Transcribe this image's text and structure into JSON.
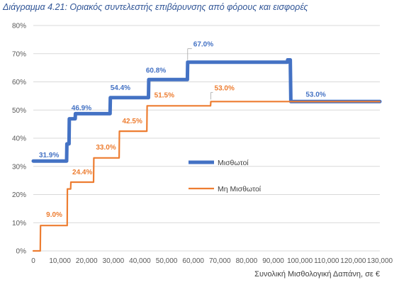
{
  "title": "Διάγραμμα 4.21: Οριακός συντελεστής επιβάρυνσης από φόρους και εισφορές",
  "chart_data": {
    "type": "line",
    "xlabel": "Συνολική Μισθολογική Δαπάνη, σε €",
    "ylabel": "",
    "xlim": [
      0,
      130000
    ],
    "ylim": [
      0,
      80
    ],
    "x_ticks": [
      "0",
      "10,000",
      "20,000",
      "30,000",
      "40,000",
      "50,000",
      "60,000",
      "70,000",
      "80,000",
      "90,000",
      "100,000",
      "110,000",
      "120,000",
      "130,000"
    ],
    "y_ticks": [
      "0%",
      "10%",
      "20%",
      "30%",
      "40%",
      "50%",
      "60%",
      "70%",
      "80%"
    ],
    "grid": "horizontal",
    "legend_position": "center-right",
    "series": [
      {
        "name": "Μισθωτοί",
        "color": "#4472c4",
        "points": [
          [
            0,
            31.9
          ],
          [
            12500,
            31.9
          ],
          [
            12600,
            38
          ],
          [
            13400,
            38
          ],
          [
            13500,
            46.9
          ],
          [
            15700,
            46.9
          ],
          [
            15800,
            48.7
          ],
          [
            28800,
            48.7
          ],
          [
            28900,
            54.4
          ],
          [
            43200,
            54.4
          ],
          [
            43300,
            60.8
          ],
          [
            57800,
            60.8
          ],
          [
            57900,
            67.0
          ],
          [
            95300,
            67.0
          ],
          [
            95400,
            67.8
          ],
          [
            96400,
            67.8
          ],
          [
            96600,
            53.0
          ],
          [
            130000,
            53.0
          ]
        ],
        "labels": [
          {
            "x": 0,
            "y": 31.9,
            "text": "31.9%"
          },
          {
            "x": 13500,
            "y": 46.9,
            "text": "46.9%"
          },
          {
            "x": 28900,
            "y": 54.4,
            "text": "54.4%"
          },
          {
            "x": 43300,
            "y": 60.8,
            "text": "60.8%"
          },
          {
            "x": 57900,
            "y": 67.0,
            "text": "67.0%"
          },
          {
            "x": 96600,
            "y": 53.0,
            "text": "53.0%"
          }
        ]
      },
      {
        "name": "Μη Μισθωτοί",
        "color": "#ed7d31",
        "points": [
          [
            0,
            0
          ],
          [
            2600,
            0
          ],
          [
            2700,
            9.0
          ],
          [
            12700,
            9.0
          ],
          [
            12800,
            22
          ],
          [
            14000,
            22
          ],
          [
            14100,
            24.4
          ],
          [
            22600,
            24.4
          ],
          [
            22700,
            33.0
          ],
          [
            32200,
            33.0
          ],
          [
            32300,
            42.5
          ],
          [
            42600,
            42.5
          ],
          [
            42700,
            51.5
          ],
          [
            66500,
            51.5
          ],
          [
            66600,
            53.0
          ],
          [
            130000,
            53.0
          ]
        ],
        "labels": [
          {
            "x": 2700,
            "y": 9.0,
            "text": "9.0%"
          },
          {
            "x": 14100,
            "y": 24.4,
            "text": "24.4%"
          },
          {
            "x": 22700,
            "y": 33.0,
            "text": "33.0%"
          },
          {
            "x": 32300,
            "y": 42.5,
            "text": "42.5%"
          },
          {
            "x": 42700,
            "y": 51.5,
            "text": "51.5%"
          },
          {
            "x": 66600,
            "y": 53.0,
            "text": "53.0%"
          }
        ]
      }
    ]
  }
}
